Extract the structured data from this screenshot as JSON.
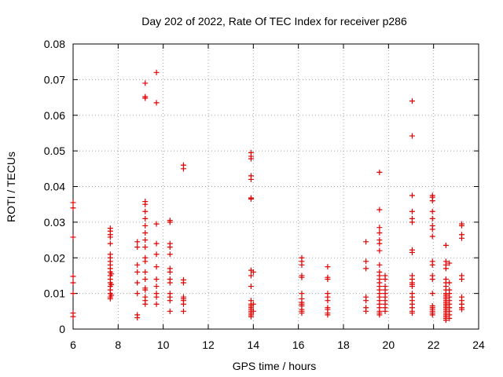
{
  "chart_data": {
    "type": "scatter",
    "title": "Day 202 of 2022, Rate Of TEC Index for receiver p286",
    "xlabel": "GPS time / hours",
    "ylabel": "ROTI / TECUs",
    "xlim": [
      6,
      24
    ],
    "ylim": [
      0,
      0.08
    ],
    "xticks": [
      6,
      8,
      10,
      12,
      14,
      16,
      18,
      20,
      22,
      24
    ],
    "yticks": [
      "0",
      "0.01",
      "0.02",
      "0.03",
      "0.04",
      "0.05",
      "0.06",
      "0.07",
      "0.08"
    ],
    "grid": true,
    "marker": "+",
    "color": "#e00000",
    "points": [
      [
        6.0,
        0.0355
      ],
      [
        6.0,
        0.034
      ],
      [
        6.0,
        0.0258
      ],
      [
        6.0,
        0.0148
      ],
      [
        6.0,
        0.013
      ],
      [
        6.0,
        0.01
      ],
      [
        6.0,
        0.0045
      ],
      [
        6.0,
        0.0035
      ],
      [
        7.65,
        0.0283
      ],
      [
        7.65,
        0.0275
      ],
      [
        7.65,
        0.0265
      ],
      [
        7.65,
        0.0258
      ],
      [
        7.65,
        0.024
      ],
      [
        7.65,
        0.021
      ],
      [
        7.65,
        0.02
      ],
      [
        7.65,
        0.019
      ],
      [
        7.65,
        0.018
      ],
      [
        7.65,
        0.017
      ],
      [
        7.65,
        0.016
      ],
      [
        7.65,
        0.015
      ],
      [
        7.65,
        0.014
      ],
      [
        7.65,
        0.013
      ],
      [
        7.65,
        0.012
      ],
      [
        7.65,
        0.011
      ],
      [
        7.65,
        0.01
      ],
      [
        7.65,
        0.009
      ],
      [
        7.65,
        0.0085
      ],
      [
        7.7,
        0.0155
      ],
      [
        7.7,
        0.0125
      ],
      [
        7.7,
        0.0095
      ],
      [
        8.85,
        0.0245
      ],
      [
        8.85,
        0.023
      ],
      [
        8.85,
        0.018
      ],
      [
        8.85,
        0.016
      ],
      [
        8.85,
        0.013
      ],
      [
        8.85,
        0.01
      ],
      [
        8.85,
        0.004
      ],
      [
        8.85,
        0.0032
      ],
      [
        9.2,
        0.069
      ],
      [
        9.2,
        0.0652
      ],
      [
        9.2,
        0.0648
      ],
      [
        9.2,
        0.0358
      ],
      [
        9.2,
        0.035
      ],
      [
        9.2,
        0.033
      ],
      [
        9.2,
        0.031
      ],
      [
        9.2,
        0.029
      ],
      [
        9.2,
        0.027
      ],
      [
        9.2,
        0.025
      ],
      [
        9.2,
        0.023
      ],
      [
        9.2,
        0.02
      ],
      [
        9.2,
        0.019
      ],
      [
        9.2,
        0.016
      ],
      [
        9.2,
        0.014
      ],
      [
        9.2,
        0.0115
      ],
      [
        9.2,
        0.011
      ],
      [
        9.2,
        0.009
      ],
      [
        9.2,
        0.008
      ],
      [
        9.2,
        0.007
      ],
      [
        9.7,
        0.072
      ],
      [
        9.7,
        0.0635
      ],
      [
        9.7,
        0.0295
      ],
      [
        9.7,
        0.024
      ],
      [
        9.7,
        0.021
      ],
      [
        9.7,
        0.0175
      ],
      [
        9.7,
        0.014
      ],
      [
        9.7,
        0.012
      ],
      [
        9.7,
        0.01
      ],
      [
        9.7,
        0.009
      ],
      [
        9.7,
        0.007
      ],
      [
        10.3,
        0.0305
      ],
      [
        10.3,
        0.03
      ],
      [
        10.3,
        0.024
      ],
      [
        10.3,
        0.023
      ],
      [
        10.3,
        0.021
      ],
      [
        10.3,
        0.017
      ],
      [
        10.3,
        0.016
      ],
      [
        10.3,
        0.014
      ],
      [
        10.3,
        0.013
      ],
      [
        10.3,
        0.01
      ],
      [
        10.3,
        0.009
      ],
      [
        10.3,
        0.008
      ],
      [
        10.3,
        0.005
      ],
      [
        10.9,
        0.046
      ],
      [
        10.9,
        0.045
      ],
      [
        10.9,
        0.0138
      ],
      [
        10.9,
        0.013
      ],
      [
        10.9,
        0.009
      ],
      [
        10.9,
        0.0085
      ],
      [
        10.9,
        0.008
      ],
      [
        10.9,
        0.007
      ],
      [
        10.9,
        0.005
      ],
      [
        13.9,
        0.0495
      ],
      [
        13.9,
        0.0485
      ],
      [
        13.9,
        0.0478
      ],
      [
        13.9,
        0.043
      ],
      [
        13.9,
        0.042
      ],
      [
        13.9,
        0.0368
      ],
      [
        13.9,
        0.0365
      ],
      [
        13.9,
        0.0165
      ],
      [
        13.9,
        0.015
      ],
      [
        13.9,
        0.012
      ],
      [
        13.9,
        0.008
      ],
      [
        13.9,
        0.007
      ],
      [
        13.9,
        0.0065
      ],
      [
        13.9,
        0.006
      ],
      [
        13.9,
        0.0055
      ],
      [
        13.9,
        0.005
      ],
      [
        13.9,
        0.0045
      ],
      [
        13.9,
        0.004
      ],
      [
        13.9,
        0.0035
      ],
      [
        14.0,
        0.016
      ],
      [
        14.0,
        0.007
      ],
      [
        14.0,
        0.005
      ],
      [
        16.15,
        0.02
      ],
      [
        16.15,
        0.019
      ],
      [
        16.15,
        0.018
      ],
      [
        16.15,
        0.015
      ],
      [
        16.15,
        0.0145
      ],
      [
        16.15,
        0.01
      ],
      [
        16.15,
        0.0085
      ],
      [
        16.15,
        0.0075
      ],
      [
        16.15,
        0.007
      ],
      [
        16.15,
        0.0065
      ],
      [
        16.15,
        0.0055
      ],
      [
        16.15,
        0.005
      ],
      [
        16.15,
        0.0045
      ],
      [
        17.3,
        0.0175
      ],
      [
        17.3,
        0.0145
      ],
      [
        17.3,
        0.014
      ],
      [
        17.3,
        0.01
      ],
      [
        17.3,
        0.009
      ],
      [
        17.3,
        0.008
      ],
      [
        17.3,
        0.006
      ],
      [
        17.3,
        0.0055
      ],
      [
        17.3,
        0.0045
      ],
      [
        17.3,
        0.004
      ],
      [
        19.0,
        0.0245
      ],
      [
        19.0,
        0.019
      ],
      [
        19.0,
        0.017
      ],
      [
        19.0,
        0.009
      ],
      [
        19.0,
        0.008
      ],
      [
        19.0,
        0.006
      ],
      [
        19.0,
        0.005
      ],
      [
        19.6,
        0.044
      ],
      [
        19.6,
        0.0335
      ],
      [
        19.6,
        0.0285
      ],
      [
        19.6,
        0.027
      ],
      [
        19.6,
        0.025
      ],
      [
        19.6,
        0.024
      ],
      [
        19.6,
        0.022
      ],
      [
        19.6,
        0.018
      ],
      [
        19.6,
        0.016
      ],
      [
        19.6,
        0.015
      ],
      [
        19.6,
        0.014
      ],
      [
        19.6,
        0.013
      ],
      [
        19.6,
        0.012
      ],
      [
        19.6,
        0.011
      ],
      [
        19.6,
        0.01
      ],
      [
        19.6,
        0.009
      ],
      [
        19.6,
        0.008
      ],
      [
        19.6,
        0.007
      ],
      [
        19.6,
        0.006
      ],
      [
        19.6,
        0.005
      ],
      [
        19.6,
        0.0045
      ],
      [
        19.6,
        0.004
      ],
      [
        19.85,
        0.015
      ],
      [
        19.85,
        0.014
      ],
      [
        19.85,
        0.012
      ],
      [
        19.85,
        0.011
      ],
      [
        19.85,
        0.01
      ],
      [
        19.85,
        0.009
      ],
      [
        19.85,
        0.008
      ],
      [
        19.85,
        0.007
      ],
      [
        19.85,
        0.006
      ],
      [
        19.85,
        0.005
      ],
      [
        21.05,
        0.064
      ],
      [
        21.05,
        0.0542
      ],
      [
        21.05,
        0.0375
      ],
      [
        21.05,
        0.033
      ],
      [
        21.05,
        0.031
      ],
      [
        21.05,
        0.03
      ],
      [
        21.05,
        0.0222
      ],
      [
        21.05,
        0.0215
      ],
      [
        21.05,
        0.015
      ],
      [
        21.05,
        0.014
      ],
      [
        21.05,
        0.013
      ],
      [
        21.05,
        0.0125
      ],
      [
        21.05,
        0.012
      ],
      [
        21.05,
        0.01
      ],
      [
        21.05,
        0.009
      ],
      [
        21.05,
        0.008
      ],
      [
        21.05,
        0.007
      ],
      [
        21.05,
        0.006
      ],
      [
        21.05,
        0.005
      ],
      [
        21.05,
        0.0045
      ],
      [
        21.95,
        0.0375
      ],
      [
        21.95,
        0.037
      ],
      [
        21.95,
        0.036
      ],
      [
        21.95,
        0.033
      ],
      [
        21.95,
        0.031
      ],
      [
        21.95,
        0.029
      ],
      [
        21.95,
        0.028
      ],
      [
        21.95,
        0.026
      ],
      [
        21.95,
        0.019
      ],
      [
        21.95,
        0.018
      ],
      [
        21.95,
        0.015
      ],
      [
        21.95,
        0.014
      ],
      [
        21.95,
        0.01
      ],
      [
        21.95,
        0.0065
      ],
      [
        21.95,
        0.006
      ],
      [
        21.95,
        0.0055
      ],
      [
        21.95,
        0.005
      ],
      [
        21.95,
        0.0045
      ],
      [
        21.95,
        0.004
      ],
      [
        22.55,
        0.0235
      ],
      [
        22.55,
        0.019
      ],
      [
        22.55,
        0.018
      ],
      [
        22.55,
        0.017
      ],
      [
        22.55,
        0.014
      ],
      [
        22.55,
        0.013
      ],
      [
        22.55,
        0.012
      ],
      [
        22.55,
        0.011
      ],
      [
        22.55,
        0.01
      ],
      [
        22.55,
        0.0095
      ],
      [
        22.55,
        0.009
      ],
      [
        22.55,
        0.0085
      ],
      [
        22.55,
        0.008
      ],
      [
        22.55,
        0.0075
      ],
      [
        22.55,
        0.007
      ],
      [
        22.55,
        0.0065
      ],
      [
        22.55,
        0.006
      ],
      [
        22.55,
        0.0055
      ],
      [
        22.55,
        0.005
      ],
      [
        22.55,
        0.0045
      ],
      [
        22.55,
        0.004
      ],
      [
        22.55,
        0.0035
      ],
      [
        22.55,
        0.003
      ],
      [
        22.55,
        0.0025
      ],
      [
        22.7,
        0.0185
      ],
      [
        22.7,
        0.013
      ],
      [
        22.7,
        0.011
      ],
      [
        22.7,
        0.01
      ],
      [
        22.7,
        0.009
      ],
      [
        22.7,
        0.008
      ],
      [
        22.7,
        0.007
      ],
      [
        22.7,
        0.006
      ],
      [
        22.7,
        0.005
      ],
      [
        22.7,
        0.004
      ],
      [
        22.7,
        0.003
      ],
      [
        23.25,
        0.0295
      ],
      [
        23.25,
        0.029
      ],
      [
        23.25,
        0.0265
      ],
      [
        23.25,
        0.0255
      ],
      [
        23.25,
        0.015
      ],
      [
        23.25,
        0.014
      ],
      [
        23.25,
        0.009
      ],
      [
        23.25,
        0.008
      ],
      [
        23.25,
        0.007
      ],
      [
        23.25,
        0.006
      ],
      [
        23.25,
        0.0055
      ]
    ]
  }
}
